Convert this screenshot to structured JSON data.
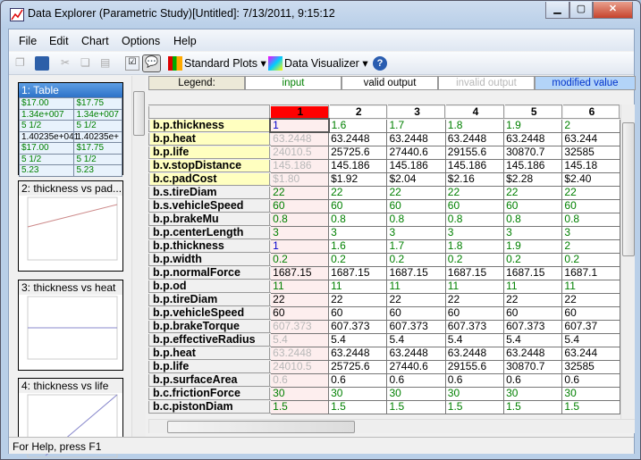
{
  "window": {
    "title": "Data Explorer (Parametric Study)[Untitled]: 7/13/2011, 9:15:12",
    "controls": [
      "minimize",
      "maximize",
      "close"
    ]
  },
  "menu": [
    "File",
    "Edit",
    "Chart",
    "Options",
    "Help"
  ],
  "toolbar": {
    "standard_plots": "Standard Plots",
    "data_visualizer": "Data Visualizer"
  },
  "thumbnails": [
    {
      "title": "1: Table",
      "rows": [
        [
          "$17.00",
          "$17.75"
        ],
        [
          "1.34e+007",
          "1.34e+007"
        ],
        [
          "5 1/2",
          "5 1/2"
        ],
        [
          "1.40235e+041",
          "1.40235e+"
        ],
        [
          "$17.00",
          "$17.75"
        ],
        [
          "5 1/2",
          "5 1/2"
        ],
        [
          "5.23",
          "5.23"
        ]
      ]
    },
    {
      "title": "2: thickness vs pad..."
    },
    {
      "title": "3: thickness vs heat"
    },
    {
      "title": "4: thickness vs life"
    }
  ],
  "legend": {
    "label": "Legend:",
    "input": "input",
    "valid": "valid output",
    "invalid": "invalid output",
    "modified": "modified value"
  },
  "colors": {
    "input": "#008000",
    "valid": "#000000",
    "invalid": "#b8b8b8",
    "modified": "#0000cc",
    "active_column": "#ff0000"
  },
  "grid": {
    "columns": [
      "1",
      "2",
      "3",
      "4",
      "5",
      "6"
    ],
    "active_column": "1",
    "rows": [
      {
        "name": "b.p.thickness",
        "hl": true,
        "types": [
          "m",
          "i",
          "i",
          "i",
          "i",
          "i"
        ],
        "values": [
          "1",
          "1.6",
          "1.7",
          "1.8",
          "1.9",
          "2"
        ]
      },
      {
        "name": "b.p.heat",
        "hl": true,
        "types": [
          "x",
          "v",
          "v",
          "v",
          "v",
          "v"
        ],
        "values": [
          "63.2448",
          "63.2448",
          "63.2448",
          "63.2448",
          "63.2448",
          "63.244"
        ]
      },
      {
        "name": "b.p.life",
        "hl": true,
        "types": [
          "x",
          "v",
          "v",
          "v",
          "v",
          "v"
        ],
        "values": [
          "24010.5",
          "25725.6",
          "27440.6",
          "29155.6",
          "30870.7",
          "32585"
        ]
      },
      {
        "name": "b.v.stopDistance",
        "hl": true,
        "types": [
          "x",
          "v",
          "v",
          "v",
          "v",
          "v"
        ],
        "values": [
          "145.186",
          "145.186",
          "145.186",
          "145.186",
          "145.186",
          "145.18"
        ]
      },
      {
        "name": "b.c.padCost",
        "hl": true,
        "types": [
          "x",
          "v",
          "v",
          "v",
          "v",
          "v"
        ],
        "values": [
          "$1.80",
          "$1.92",
          "$2.04",
          "$2.16",
          "$2.28",
          "$2.40"
        ]
      },
      {
        "name": "b.s.tireDiam",
        "types": [
          "i",
          "i",
          "i",
          "i",
          "i",
          "i"
        ],
        "values": [
          "22",
          "22",
          "22",
          "22",
          "22",
          "22"
        ]
      },
      {
        "name": "b.s.vehicleSpeed",
        "types": [
          "i",
          "i",
          "i",
          "i",
          "i",
          "i"
        ],
        "values": [
          "60",
          "60",
          "60",
          "60",
          "60",
          "60"
        ]
      },
      {
        "name": "b.p.brakeMu",
        "types": [
          "i",
          "i",
          "i",
          "i",
          "i",
          "i"
        ],
        "values": [
          "0.8",
          "0.8",
          "0.8",
          "0.8",
          "0.8",
          "0.8"
        ]
      },
      {
        "name": "b.p.centerLength",
        "types": [
          "i",
          "i",
          "i",
          "i",
          "i",
          "i"
        ],
        "values": [
          "3",
          "3",
          "3",
          "3",
          "3",
          "3"
        ]
      },
      {
        "name": "b.p.thickness",
        "types": [
          "m",
          "i",
          "i",
          "i",
          "i",
          "i"
        ],
        "values": [
          "1",
          "1.6",
          "1.7",
          "1.8",
          "1.9",
          "2"
        ]
      },
      {
        "name": "b.p.width",
        "types": [
          "i",
          "i",
          "i",
          "i",
          "i",
          "i"
        ],
        "values": [
          "0.2",
          "0.2",
          "0.2",
          "0.2",
          "0.2",
          "0.2"
        ]
      },
      {
        "name": "b.p.normalForce",
        "types": [
          "v",
          "v",
          "v",
          "v",
          "v",
          "v"
        ],
        "values": [
          "1687.15",
          "1687.15",
          "1687.15",
          "1687.15",
          "1687.15",
          "1687.1"
        ]
      },
      {
        "name": "b.p.od",
        "types": [
          "i",
          "i",
          "i",
          "i",
          "i",
          "i"
        ],
        "values": [
          "11",
          "11",
          "11",
          "11",
          "11",
          "11"
        ]
      },
      {
        "name": "b.p.tireDiam",
        "types": [
          "v",
          "v",
          "v",
          "v",
          "v",
          "v"
        ],
        "values": [
          "22",
          "22",
          "22",
          "22",
          "22",
          "22"
        ]
      },
      {
        "name": "b.p.vehicleSpeed",
        "types": [
          "v",
          "v",
          "v",
          "v",
          "v",
          "v"
        ],
        "values": [
          "60",
          "60",
          "60",
          "60",
          "60",
          "60"
        ]
      },
      {
        "name": "b.p.brakeTorque",
        "types": [
          "x",
          "v",
          "v",
          "v",
          "v",
          "v"
        ],
        "values": [
          "607.373",
          "607.373",
          "607.373",
          "607.373",
          "607.373",
          "607.37"
        ]
      },
      {
        "name": "b.p.effectiveRadius",
        "types": [
          "x",
          "v",
          "v",
          "v",
          "v",
          "v"
        ],
        "values": [
          "5.4",
          "5.4",
          "5.4",
          "5.4",
          "5.4",
          "5.4"
        ]
      },
      {
        "name": "b.p.heat",
        "types": [
          "x",
          "v",
          "v",
          "v",
          "v",
          "v"
        ],
        "values": [
          "63.2448",
          "63.2448",
          "63.2448",
          "63.2448",
          "63.2448",
          "63.244"
        ]
      },
      {
        "name": "b.p.life",
        "types": [
          "x",
          "v",
          "v",
          "v",
          "v",
          "v"
        ],
        "values": [
          "24010.5",
          "25725.6",
          "27440.6",
          "29155.6",
          "30870.7",
          "32585"
        ]
      },
      {
        "name": "b.p.surfaceArea",
        "types": [
          "x",
          "v",
          "v",
          "v",
          "v",
          "v"
        ],
        "values": [
          "0.6",
          "0.6",
          "0.6",
          "0.6",
          "0.6",
          "0.6"
        ]
      },
      {
        "name": "b.c.frictionForce",
        "types": [
          "i",
          "i",
          "i",
          "i",
          "i",
          "i"
        ],
        "values": [
          "30",
          "30",
          "30",
          "30",
          "30",
          "30"
        ]
      },
      {
        "name": "b.c.pistonDiam",
        "types": [
          "i",
          "i",
          "i",
          "i",
          "i",
          "i"
        ],
        "values": [
          "1.5",
          "1.5",
          "1.5",
          "1.5",
          "1.5",
          "1.5"
        ]
      }
    ]
  },
  "status": "For Help, press F1"
}
